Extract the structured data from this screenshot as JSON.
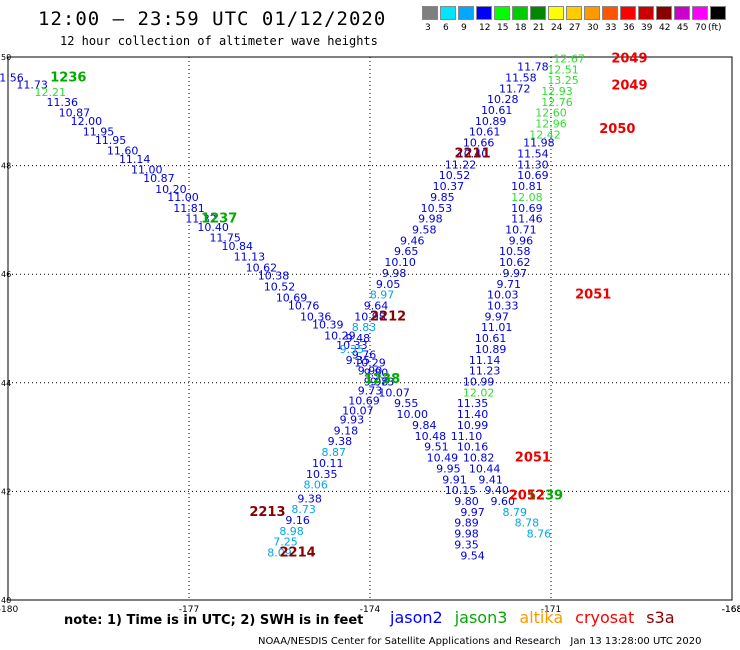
{
  "header": {
    "title": "12:00 – 23:59 UTC 01/12/2020",
    "subtitle": "12 hour collection of altimeter wave heights"
  },
  "colorbar": {
    "labels": [
      "3",
      "6",
      "9",
      "12",
      "15",
      "18",
      "21",
      "24",
      "27",
      "30",
      "33",
      "36",
      "39",
      "42",
      "45",
      "70",
      "(ft)"
    ],
    "colors": [
      "#7f7f7f",
      "#00e5ff",
      "#00a8ff",
      "#0000ff",
      "#00ff00",
      "#00cc00",
      "#008800",
      "#ffff00",
      "#ffcc00",
      "#ff9900",
      "#ff5500",
      "#ff0000",
      "#cc0000",
      "#880000",
      "#cc00cc",
      "#ff00ff",
      "#000000"
    ]
  },
  "note": "note: 1) Time is in UTC; 2) SWH is in feet",
  "legend": [
    {
      "name": "jason2",
      "color": "#0000ff"
    },
    {
      "name": "jason3",
      "color": "#00aa00"
    },
    {
      "name": "altika",
      "color": "#ff9900"
    },
    {
      "name": "cryosat",
      "color": "#ff0000"
    },
    {
      "name": "s3a",
      "color": "#880000"
    }
  ],
  "footer": "NOAA/NESDIS Center for Satellite Applications and Research   Jan 13 13:28:00 UTC 2020",
  "chart_data": {
    "type": "scatter",
    "xlim": [
      -180,
      -168
    ],
    "ylim": [
      40,
      50
    ],
    "xticks": [
      "-180",
      "-177",
      "-174",
      "-171",
      "-168",
      "-168"
    ],
    "yticks": [
      "40",
      "42",
      "44",
      "46",
      "48",
      "50"
    ],
    "grid": true,
    "colors": {
      "blue": "#0000dd",
      "cyan": "#00a8e8",
      "green": "#33dd33",
      "dgreen": "#00aa00",
      "red": "#ee0000",
      "dred": "#880000"
    },
    "tracks": [
      {
        "color": "blue",
        "points": [
          [
            -180,
            49.55,
            "11.56"
          ],
          [
            -179.6,
            49.42,
            "11.73"
          ],
          [
            -179.3,
            49.28,
            "12.21",
            "green"
          ],
          [
            -179.1,
            49.1,
            "11.36"
          ],
          [
            -178.9,
            48.9,
            "10.87"
          ],
          [
            -178.7,
            48.75,
            "12.00"
          ],
          [
            -178.5,
            48.55,
            "11.95"
          ],
          [
            -178.3,
            48.4,
            "11.95"
          ],
          [
            -178.1,
            48.2,
            "11.60"
          ],
          [
            -177.9,
            48.05,
            "11.14"
          ],
          [
            -177.7,
            47.85,
            "11.00"
          ],
          [
            -177.5,
            47.7,
            "10.87"
          ],
          [
            -177.3,
            47.5,
            "10.20"
          ],
          [
            -177.1,
            47.35,
            "11.00"
          ],
          [
            -177.0,
            47.15,
            "11.81"
          ],
          [
            -176.8,
            46.95,
            "11.32"
          ],
          [
            -176.6,
            46.8,
            "10.40"
          ],
          [
            -176.4,
            46.6,
            "11.75"
          ],
          [
            -176.2,
            46.45,
            "10.84"
          ],
          [
            -176.0,
            46.25,
            "11.13"
          ],
          [
            -175.8,
            46.05,
            "10.62"
          ],
          [
            -175.6,
            45.9,
            "10.38"
          ],
          [
            -175.5,
            45.7,
            "10.52"
          ],
          [
            -175.3,
            45.5,
            "10.69"
          ],
          [
            -175.1,
            45.35,
            "10.76"
          ],
          [
            -174.9,
            45.15,
            "10.36"
          ],
          [
            -174.7,
            45.0,
            "10.39"
          ],
          [
            -174.5,
            44.8,
            "10.29"
          ],
          [
            -174.3,
            44.62,
            "10.33"
          ],
          [
            -174.1,
            44.45,
            "9.76"
          ],
          [
            -174.0,
            44.3,
            "10.29"
          ],
          [
            -173.9,
            44.12,
            "9.80"
          ],
          [
            -173.9,
            43.95,
            "9.98"
          ],
          [
            -174.0,
            43.78,
            "9.73"
          ],
          [
            -174.1,
            43.6,
            "10.69"
          ],
          [
            -174.2,
            43.42,
            "10.07"
          ],
          [
            -174.3,
            43.25,
            "9.93"
          ],
          [
            -174.4,
            43.05,
            "9.18"
          ],
          [
            -174.5,
            42.85,
            "9.38"
          ],
          [
            -174.6,
            42.65,
            "8.87",
            "cyan"
          ],
          [
            -174.7,
            42.45,
            "10.11"
          ],
          [
            -174.8,
            42.25,
            "10.35"
          ],
          [
            -174.9,
            42.05,
            "8.06",
            "cyan"
          ],
          [
            -175.0,
            41.8,
            "9.38"
          ],
          [
            -175.1,
            41.6,
            "8.73",
            "cyan"
          ],
          [
            -175.2,
            41.4,
            "9.16"
          ],
          [
            -175.3,
            41.2,
            "8.98",
            "cyan"
          ],
          [
            -175.4,
            41.0,
            "7.25",
            "cyan"
          ],
          [
            -175.5,
            40.8,
            "8.09",
            "cyan"
          ]
        ]
      },
      {
        "color": "blue",
        "points": [
          [
            -171.3,
            49.75,
            "11.78"
          ],
          [
            -171.5,
            49.55,
            "11.58"
          ],
          [
            -171.6,
            49.35,
            "11.72"
          ],
          [
            -171.8,
            49.15,
            "10.28"
          ],
          [
            -171.9,
            48.95,
            "10.61"
          ],
          [
            -172.0,
            48.75,
            "10.89"
          ],
          [
            -172.1,
            48.55,
            "10.61"
          ],
          [
            -172.2,
            48.35,
            "10.66"
          ],
          [
            -172.3,
            48.15,
            "10.40"
          ],
          [
            -172.5,
            47.95,
            "11.22"
          ],
          [
            -172.6,
            47.75,
            "10.52"
          ],
          [
            -172.7,
            47.55,
            "10.37"
          ],
          [
            -172.8,
            47.35,
            "9.85"
          ],
          [
            -172.9,
            47.15,
            "10.53"
          ],
          [
            -173.0,
            46.95,
            "9.98"
          ],
          [
            -173.1,
            46.75,
            "9.58"
          ],
          [
            -173.3,
            46.55,
            "9.46"
          ],
          [
            -173.4,
            46.35,
            "9.65"
          ],
          [
            -173.5,
            46.15,
            "10.10"
          ],
          [
            -173.6,
            45.95,
            "9.98"
          ],
          [
            -173.7,
            45.75,
            "9.05"
          ],
          [
            -173.8,
            45.55,
            "8.97",
            "cyan"
          ],
          [
            -173.9,
            45.35,
            "9.64"
          ],
          [
            -174.0,
            45.15,
            "10.98"
          ],
          [
            -174.1,
            44.95,
            "8.83",
            "cyan"
          ],
          [
            -174.2,
            44.75,
            "9.48"
          ],
          [
            -174.3,
            44.55,
            "9.35",
            "cyan"
          ],
          [
            -174.2,
            44.35,
            "9.35"
          ],
          [
            -174.0,
            44.15,
            "9.90"
          ],
          [
            -173.8,
            43.95,
            "9.73"
          ],
          [
            -173.6,
            43.75,
            "10.07"
          ],
          [
            -173.4,
            43.55,
            "9.55"
          ],
          [
            -173.3,
            43.35,
            "10.00"
          ],
          [
            -173.1,
            43.15,
            "9.84"
          ],
          [
            -173.0,
            42.95,
            "10.48"
          ],
          [
            -172.9,
            42.75,
            "9.51"
          ],
          [
            -172.8,
            42.55,
            "10.49"
          ],
          [
            -172.7,
            42.35,
            "9.95"
          ],
          [
            -172.6,
            42.15,
            "9.91"
          ],
          [
            -172.5,
            41.95,
            "10.15"
          ],
          [
            -172.4,
            41.75,
            "9.80"
          ],
          [
            -172.3,
            41.55,
            "9.97"
          ],
          [
            -172.4,
            41.35,
            "9.89"
          ],
          [
            -172.4,
            41.15,
            "9.98"
          ],
          [
            -172.4,
            40.95,
            "9.35"
          ],
          [
            -172.3,
            40.75,
            "9.54"
          ]
        ]
      },
      {
        "color": "blue",
        "points": [
          [
            -171.2,
            48.35,
            "11.98"
          ],
          [
            -171.3,
            48.15,
            "11.54"
          ],
          [
            -171.3,
            47.95,
            "11.30"
          ],
          [
            -171.3,
            47.75,
            "10.69"
          ],
          [
            -171.4,
            47.55,
            "10.81"
          ],
          [
            -171.4,
            47.35,
            "12.08",
            "green"
          ],
          [
            -171.4,
            47.15,
            "10.69"
          ],
          [
            -171.4,
            46.95,
            "11.46"
          ],
          [
            -171.5,
            46.75,
            "10.71"
          ],
          [
            -171.5,
            46.55,
            "9.96"
          ],
          [
            -171.6,
            46.35,
            "10.58"
          ],
          [
            -171.6,
            46.15,
            "10.62"
          ],
          [
            -171.6,
            45.95,
            "9.97"
          ],
          [
            -171.7,
            45.75,
            "9.71"
          ],
          [
            -171.8,
            45.55,
            "10.03"
          ],
          [
            -171.8,
            45.35,
            "10.33"
          ],
          [
            -171.9,
            45.15,
            "9.97"
          ],
          [
            -171.9,
            44.95,
            "11.01"
          ],
          [
            -172.0,
            44.75,
            "10.61"
          ],
          [
            -172.0,
            44.55,
            "10.89"
          ],
          [
            -172.1,
            44.35,
            "11.14"
          ],
          [
            -172.1,
            44.15,
            "11.23"
          ],
          [
            -172.2,
            43.95,
            "10.99"
          ],
          [
            -172.2,
            43.75,
            "12.02",
            "green"
          ],
          [
            -172.3,
            43.55,
            "11.35"
          ],
          [
            -172.3,
            43.35,
            "11.40"
          ],
          [
            -172.3,
            43.15,
            "10.99"
          ],
          [
            -172.4,
            42.95,
            "11.10"
          ],
          [
            -172.3,
            42.75,
            "10.16"
          ],
          [
            -172.2,
            42.55,
            "10.82"
          ],
          [
            -172.1,
            42.35,
            "10.44"
          ],
          [
            -172.0,
            42.15,
            "9.41"
          ],
          [
            -171.9,
            41.95,
            "9.40"
          ],
          [
            -171.8,
            41.75,
            "9.60"
          ],
          [
            -171.6,
            41.55,
            "8.79",
            "cyan"
          ],
          [
            -171.4,
            41.35,
            "8.78",
            "cyan"
          ],
          [
            -171.2,
            41.15,
            "8.76",
            "cyan"
          ]
        ]
      },
      {
        "color": "green",
        "points": [
          [
            -170.7,
            49.9,
            "12.67"
          ],
          [
            -170.8,
            49.7,
            "12.51"
          ],
          [
            -170.8,
            49.5,
            "13.25"
          ],
          [
            -170.9,
            49.3,
            "12.93"
          ],
          [
            -170.9,
            49.1,
            "12.76"
          ],
          [
            -171.0,
            48.9,
            "12.60"
          ],
          [
            -171.0,
            48.7,
            "12.96"
          ],
          [
            -171.1,
            48.5,
            "12.42"
          ]
        ]
      }
    ],
    "annotations": [
      {
        "x": -179.0,
        "y": 49.55,
        "text": "1236",
        "color": "dgreen"
      },
      {
        "x": -176.5,
        "y": 46.95,
        "text": "1237",
        "color": "dgreen"
      },
      {
        "x": -173.8,
        "y": 44.0,
        "text": "1238",
        "color": "dgreen"
      },
      {
        "x": -171.1,
        "y": 41.85,
        "text": "1239",
        "color": "dgreen"
      },
      {
        "x": -169.7,
        "y": 49.9,
        "text": "2049",
        "color": "red"
      },
      {
        "x": -169.7,
        "y": 49.4,
        "text": "2049",
        "color": "red"
      },
      {
        "x": -169.9,
        "y": 48.6,
        "text": "2050",
        "color": "red"
      },
      {
        "x": -170.3,
        "y": 45.55,
        "text": "2051",
        "color": "red"
      },
      {
        "x": -171.3,
        "y": 42.55,
        "text": "2051",
        "color": "red"
      },
      {
        "x": -171.4,
        "y": 41.85,
        "text": "2052",
        "color": "red"
      },
      {
        "x": -172.3,
        "y": 48.15,
        "text": "2211",
        "color": "dred"
      },
      {
        "x": -173.7,
        "y": 45.15,
        "text": "2212",
        "color": "dred"
      },
      {
        "x": -175.7,
        "y": 41.55,
        "text": "2213",
        "color": "dred"
      },
      {
        "x": -175.2,
        "y": 40.8,
        "text": "2214",
        "color": "dred"
      }
    ]
  }
}
